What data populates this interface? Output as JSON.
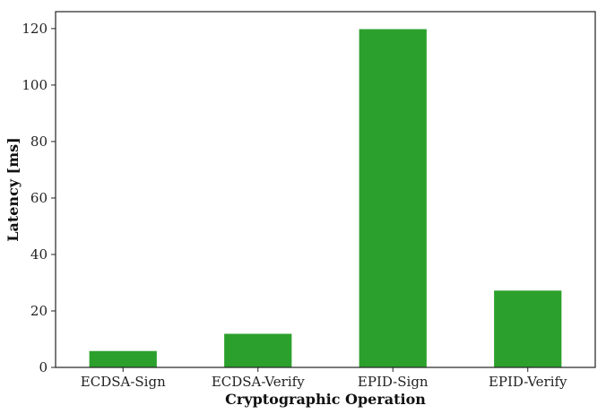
{
  "chart_data": {
    "type": "bar",
    "title": "",
    "xlabel": "Cryptographic Operation",
    "ylabel": "Latency [ms]",
    "categories": [
      "ECDSA-Sign",
      "ECDSA-Verify",
      "EPID-Sign",
      "EPID-Verify"
    ],
    "values": [
      5.8,
      11.9,
      119.8,
      27.2
    ],
    "ylim": [
      0,
      126
    ],
    "yticks": [
      0,
      20,
      40,
      60,
      80,
      100,
      120
    ],
    "grid": false,
    "legend": "none",
    "bar_color": "#2ca02c"
  }
}
